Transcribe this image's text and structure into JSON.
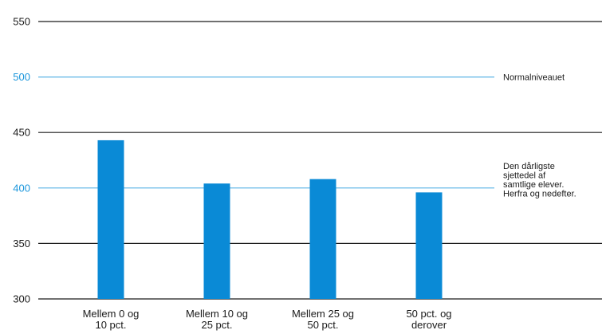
{
  "chart_data": {
    "type": "bar",
    "categories": [
      [
        "Mellem 0 og",
        "10 pct."
      ],
      [
        "Mellem 10 og",
        "25 pct."
      ],
      [
        "Mellem 25 og",
        "50 pct."
      ],
      [
        "50 pct. og",
        "derover"
      ]
    ],
    "values": [
      443,
      404,
      408,
      396
    ],
    "ylim": [
      300,
      550
    ],
    "yticks": [
      300,
      350,
      400,
      450,
      500,
      550
    ],
    "grid": true,
    "reference_lines": [
      {
        "value": 500,
        "label_lines": [
          "Normalniveauet"
        ]
      },
      {
        "value": 400,
        "label_lines": [
          "Den dårligste",
          "sjettedel af",
          "samtlige elever.",
          "Herfra og nedefter."
        ]
      }
    ],
    "colors": {
      "bar": "#0a8ad6",
      "reference_line": "#5ab4e6",
      "reference_tick": "#1a96dc",
      "gridline": "#1a1a1a",
      "text": "#1a1a1a"
    }
  }
}
